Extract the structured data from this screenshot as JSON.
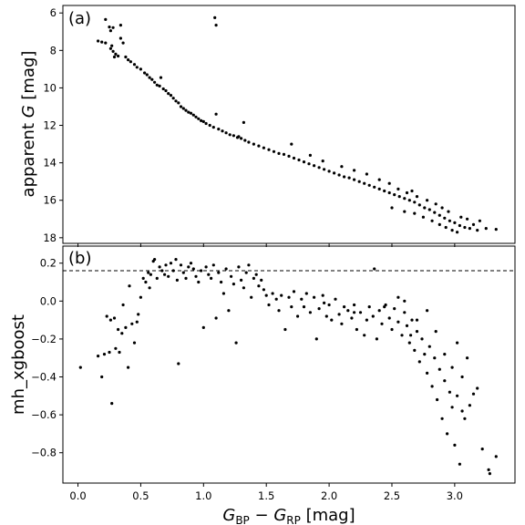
{
  "chart_data": [
    {
      "type": "scatter",
      "panel_label": "(a)",
      "ylabel_prefix": "apparent ",
      "ylabel_var": "G",
      "ylabel_suffix": " [mag]",
      "xlim": [
        -0.12,
        3.48
      ],
      "ylim": [
        18.3,
        5.6
      ],
      "y_inverted": true,
      "yticks": [
        6,
        8,
        10,
        12,
        14,
        16,
        18
      ],
      "xticks": [
        0.0,
        0.5,
        1.0,
        1.5,
        2.0,
        2.5,
        3.0
      ],
      "x_tick_labels_shown": false,
      "points": [
        [
          0.22,
          6.35
        ],
        [
          0.25,
          6.75
        ],
        [
          0.26,
          6.95
        ],
        [
          0.28,
          6.78
        ],
        [
          0.34,
          6.65
        ],
        [
          1.09,
          6.25
        ],
        [
          1.1,
          6.65
        ],
        [
          0.16,
          7.5
        ],
        [
          0.19,
          7.55
        ],
        [
          0.22,
          7.6
        ],
        [
          0.27,
          7.75
        ],
        [
          0.26,
          7.9
        ],
        [
          0.28,
          8.05
        ],
        [
          0.3,
          8.2
        ],
        [
          0.29,
          8.35
        ],
        [
          0.32,
          8.3
        ],
        [
          0.34,
          7.35
        ],
        [
          0.36,
          7.6
        ],
        [
          0.38,
          8.35
        ],
        [
          0.4,
          8.5
        ],
        [
          0.42,
          8.6
        ],
        [
          0.45,
          8.75
        ],
        [
          0.47,
          8.9
        ],
        [
          0.5,
          9.0
        ],
        [
          0.53,
          9.2
        ],
        [
          0.55,
          9.3
        ],
        [
          0.57,
          9.45
        ],
        [
          0.59,
          9.55
        ],
        [
          0.61,
          9.7
        ],
        [
          0.63,
          9.85
        ],
        [
          0.65,
          9.9
        ],
        [
          0.66,
          9.45
        ],
        [
          0.68,
          10.05
        ],
        [
          0.7,
          10.15
        ],
        [
          0.72,
          10.3
        ],
        [
          0.74,
          10.4
        ],
        [
          0.76,
          10.55
        ],
        [
          0.78,
          10.7
        ],
        [
          0.8,
          10.8
        ],
        [
          0.82,
          11.0
        ],
        [
          0.84,
          11.1
        ],
        [
          0.86,
          11.2
        ],
        [
          0.88,
          11.3
        ],
        [
          0.9,
          11.35
        ],
        [
          0.92,
          11.45
        ],
        [
          0.94,
          11.55
        ],
        [
          0.96,
          11.65
        ],
        [
          0.98,
          11.75
        ],
        [
          1.0,
          11.8
        ],
        [
          1.02,
          11.9
        ],
        [
          1.05,
          12.0
        ],
        [
          1.08,
          12.1
        ],
        [
          1.1,
          11.4
        ],
        [
          1.12,
          12.2
        ],
        [
          1.15,
          12.3
        ],
        [
          1.18,
          12.4
        ],
        [
          1.21,
          12.5
        ],
        [
          1.24,
          12.55
        ],
        [
          1.27,
          12.65
        ],
        [
          1.3,
          12.7
        ],
        [
          1.33,
          12.8
        ],
        [
          1.36,
          12.9
        ],
        [
          1.4,
          13.0
        ],
        [
          1.32,
          11.85
        ],
        [
          1.28,
          12.6
        ],
        [
          1.44,
          13.1
        ],
        [
          1.48,
          13.2
        ],
        [
          1.52,
          13.3
        ],
        [
          1.56,
          13.4
        ],
        [
          1.6,
          13.5
        ],
        [
          1.64,
          13.55
        ],
        [
          1.68,
          13.65
        ],
        [
          1.72,
          13.75
        ],
        [
          1.76,
          13.85
        ],
        [
          1.8,
          13.95
        ],
        [
          1.84,
          14.05
        ],
        [
          1.7,
          13.0
        ],
        [
          1.88,
          14.15
        ],
        [
          1.92,
          14.25
        ],
        [
          1.96,
          14.35
        ],
        [
          2.0,
          14.45
        ],
        [
          2.04,
          14.55
        ],
        [
          2.08,
          14.65
        ],
        [
          2.12,
          14.75
        ],
        [
          2.16,
          14.8
        ],
        [
          2.2,
          14.9
        ],
        [
          2.24,
          15.0
        ],
        [
          2.28,
          15.1
        ],
        [
          2.32,
          15.2
        ],
        [
          2.36,
          15.3
        ],
        [
          2.4,
          15.4
        ],
        [
          2.44,
          15.5
        ],
        [
          2.48,
          15.6
        ],
        [
          2.52,
          15.7
        ],
        [
          2.56,
          15.8
        ],
        [
          2.6,
          15.9
        ],
        [
          2.64,
          16.0
        ],
        [
          2.68,
          16.1
        ],
        [
          2.72,
          16.25
        ],
        [
          2.76,
          16.4
        ],
        [
          2.8,
          16.5
        ],
        [
          2.84,
          16.65
        ],
        [
          2.88,
          16.8
        ],
        [
          2.92,
          16.95
        ],
        [
          2.96,
          17.1
        ],
        [
          3.0,
          17.2
        ],
        [
          3.04,
          17.35
        ],
        [
          3.08,
          17.45
        ],
        [
          3.12,
          17.5
        ],
        [
          3.18,
          17.6
        ],
        [
          3.25,
          17.5
        ],
        [
          3.33,
          17.55
        ],
        [
          3.1,
          17.0
        ],
        [
          3.05,
          16.9
        ],
        [
          2.95,
          16.6
        ],
        [
          2.9,
          16.4
        ],
        [
          2.85,
          16.2
        ],
        [
          2.78,
          16.0
        ],
        [
          2.7,
          15.8
        ],
        [
          2.62,
          15.6
        ],
        [
          2.55,
          15.4
        ],
        [
          2.48,
          15.1
        ],
        [
          2.4,
          14.9
        ],
        [
          2.3,
          14.6
        ],
        [
          2.2,
          14.4
        ],
        [
          2.1,
          14.2
        ],
        [
          1.95,
          13.9
        ],
        [
          1.85,
          13.6
        ],
        [
          2.5,
          16.4
        ],
        [
          2.6,
          16.6
        ],
        [
          2.75,
          16.9
        ],
        [
          2.88,
          17.3
        ],
        [
          2.98,
          17.6
        ],
        [
          3.02,
          17.7
        ],
        [
          2.93,
          17.45
        ],
        [
          2.82,
          17.1
        ],
        [
          2.68,
          16.7
        ],
        [
          3.15,
          17.3
        ],
        [
          3.2,
          17.1
        ],
        [
          2.66,
          15.5
        ]
      ]
    },
    {
      "type": "scatter",
      "panel_label": "(b)",
      "ylabel": "mh_xgboost",
      "xlabel_main": "G",
      "xlabel_sub1": "BP",
      "xlabel_minus": " − ",
      "xlabel_sub2": "RP",
      "xlabel_units": " [mag]",
      "xlim": [
        -0.12,
        3.48
      ],
      "ylim": [
        -0.96,
        0.29
      ],
      "yticks": [
        0.2,
        0.0,
        -0.2,
        -0.4,
        -0.6,
        -0.8
      ],
      "ytick_labels": [
        "0.2",
        "0.0",
        "−0.2",
        "−0.4",
        "−0.6",
        "−0.8"
      ],
      "xticks": [
        0.0,
        0.5,
        1.0,
        1.5,
        2.0,
        2.5,
        3.0
      ],
      "xtick_labels": [
        "0.0",
        "0.5",
        "1.0",
        "1.5",
        "2.0",
        "2.5",
        "3.0"
      ],
      "hline": 0.16,
      "points": [
        [
          0.02,
          -0.35
        ],
        [
          0.16,
          -0.29
        ],
        [
          0.19,
          -0.4
        ],
        [
          0.21,
          -0.28
        ],
        [
          0.23,
          -0.08
        ],
        [
          0.25,
          -0.27
        ],
        [
          0.26,
          -0.1
        ],
        [
          0.27,
          -0.54
        ],
        [
          0.29,
          -0.09
        ],
        [
          0.3,
          -0.25
        ],
        [
          0.32,
          -0.15
        ],
        [
          0.33,
          -0.27
        ],
        [
          0.35,
          -0.17
        ],
        [
          0.36,
          -0.02
        ],
        [
          0.38,
          -0.14
        ],
        [
          0.4,
          -0.35
        ],
        [
          0.41,
          0.08
        ],
        [
          0.43,
          -0.12
        ],
        [
          0.45,
          -0.22
        ],
        [
          0.47,
          -0.11
        ],
        [
          0.48,
          -0.07
        ],
        [
          0.5,
          0.02
        ],
        [
          0.52,
          0.12
        ],
        [
          0.54,
          0.1
        ],
        [
          0.56,
          0.15
        ],
        [
          0.57,
          0.07
        ],
        [
          0.58,
          0.14
        ],
        [
          0.6,
          0.21
        ],
        [
          0.61,
          0.22
        ],
        [
          0.63,
          0.12
        ],
        [
          0.65,
          0.18
        ],
        [
          0.67,
          0.16
        ],
        [
          0.69,
          0.14
        ],
        [
          0.7,
          0.19
        ],
        [
          0.72,
          0.13
        ],
        [
          0.74,
          0.2
        ],
        [
          0.76,
          0.16
        ],
        [
          0.78,
          0.22
        ],
        [
          0.79,
          0.11
        ],
        [
          0.8,
          -0.33
        ],
        [
          0.82,
          0.19
        ],
        [
          0.84,
          0.15
        ],
        [
          0.86,
          0.12
        ],
        [
          0.88,
          0.18
        ],
        [
          0.9,
          0.2
        ],
        [
          0.92,
          0.17
        ],
        [
          0.94,
          0.13
        ],
        [
          0.96,
          0.1
        ],
        [
          0.98,
          0.16
        ],
        [
          1.0,
          -0.14
        ],
        [
          1.02,
          0.18
        ],
        [
          1.04,
          0.14
        ],
        [
          1.06,
          0.12
        ],
        [
          1.08,
          0.19
        ],
        [
          1.1,
          -0.09
        ],
        [
          1.12,
          0.15
        ],
        [
          1.14,
          0.1
        ],
        [
          1.16,
          0.04
        ],
        [
          1.18,
          0.17
        ],
        [
          1.2,
          -0.05
        ],
        [
          1.22,
          0.13
        ],
        [
          1.24,
          0.09
        ],
        [
          1.26,
          -0.22
        ],
        [
          1.28,
          0.18
        ],
        [
          1.3,
          0.11
        ],
        [
          1.32,
          0.07
        ],
        [
          1.34,
          0.15
        ],
        [
          1.36,
          0.19
        ],
        [
          1.38,
          0.02
        ],
        [
          1.4,
          0.12
        ],
        [
          1.42,
          0.14
        ],
        [
          1.44,
          0.08
        ],
        [
          1.46,
          0.11
        ],
        [
          1.48,
          0.06
        ],
        [
          1.5,
          0.03
        ],
        [
          1.52,
          -0.02
        ],
        [
          1.55,
          0.04
        ],
        [
          1.58,
          0.01
        ],
        [
          1.6,
          -0.05
        ],
        [
          1.62,
          0.03
        ],
        [
          1.65,
          -0.15
        ],
        [
          1.68,
          0.02
        ],
        [
          1.7,
          -0.03
        ],
        [
          1.72,
          0.05
        ],
        [
          1.75,
          -0.08
        ],
        [
          1.78,
          0.01
        ],
        [
          1.8,
          -0.03
        ],
        [
          1.82,
          0.04
        ],
        [
          1.85,
          -0.06
        ],
        [
          1.88,
          0.02
        ],
        [
          1.9,
          -0.2
        ],
        [
          1.92,
          -0.04
        ],
        [
          1.95,
          0.03
        ],
        [
          1.98,
          -0.08
        ],
        [
          2.0,
          -0.02
        ],
        [
          2.02,
          -0.1
        ],
        [
          2.05,
          0.01
        ],
        [
          2.08,
          -0.07
        ],
        [
          2.1,
          -0.12
        ],
        [
          2.12,
          -0.03
        ],
        [
          2.15,
          -0.05
        ],
        [
          2.18,
          -0.09
        ],
        [
          2.2,
          -0.02
        ],
        [
          2.22,
          -0.15
        ],
        [
          2.25,
          -0.06
        ],
        [
          2.28,
          -0.18
        ],
        [
          2.3,
          -0.1
        ],
        [
          2.32,
          -0.03
        ],
        [
          2.35,
          -0.08
        ],
        [
          2.38,
          -0.2
        ],
        [
          2.4,
          -0.05
        ],
        [
          2.42,
          -0.12
        ],
        [
          2.45,
          -0.02
        ],
        [
          2.48,
          -0.09
        ],
        [
          2.5,
          -0.15
        ],
        [
          2.52,
          -0.04
        ],
        [
          2.55,
          -0.11
        ],
        [
          2.58,
          -0.18
        ],
        [
          2.6,
          -0.06
        ],
        [
          2.62,
          -0.13
        ],
        [
          2.64,
          -0.22
        ],
        [
          2.66,
          -0.1
        ],
        [
          2.68,
          -0.26
        ],
        [
          2.7,
          -0.16
        ],
        [
          2.72,
          -0.32
        ],
        [
          2.74,
          -0.2
        ],
        [
          2.76,
          -0.28
        ],
        [
          2.78,
          -0.38
        ],
        [
          2.8,
          -0.24
        ],
        [
          2.82,
          -0.45
        ],
        [
          2.84,
          -0.3
        ],
        [
          2.86,
          -0.52
        ],
        [
          2.88,
          -0.36
        ],
        [
          2.9,
          -0.62
        ],
        [
          2.92,
          -0.42
        ],
        [
          2.94,
          -0.7
        ],
        [
          2.96,
          -0.48
        ],
        [
          2.98,
          -0.56
        ],
        [
          3.0,
          -0.76
        ],
        [
          3.02,
          -0.5
        ],
        [
          3.04,
          -0.86
        ],
        [
          3.06,
          -0.4
        ],
        [
          3.08,
          -0.62
        ],
        [
          3.1,
          -0.3
        ],
        [
          3.12,
          -0.55
        ],
        [
          3.15,
          -0.49
        ],
        [
          3.18,
          -0.46
        ],
        [
          3.22,
          -0.78
        ],
        [
          3.27,
          -0.89
        ],
        [
          3.28,
          -0.91
        ],
        [
          3.33,
          -0.82
        ],
        [
          2.36,
          0.17
        ],
        [
          2.55,
          0.02
        ],
        [
          2.65,
          -0.18
        ],
        [
          2.7,
          -0.1
        ],
        [
          2.78,
          -0.05
        ],
        [
          2.85,
          -0.16
        ],
        [
          2.92,
          -0.28
        ],
        [
          2.98,
          -0.35
        ],
        [
          3.02,
          -0.22
        ],
        [
          3.06,
          -0.58
        ],
        [
          2.6,
          0.0
        ],
        [
          2.44,
          -0.03
        ],
        [
          2.2,
          -0.06
        ],
        [
          1.96,
          -0.01
        ]
      ]
    }
  ]
}
